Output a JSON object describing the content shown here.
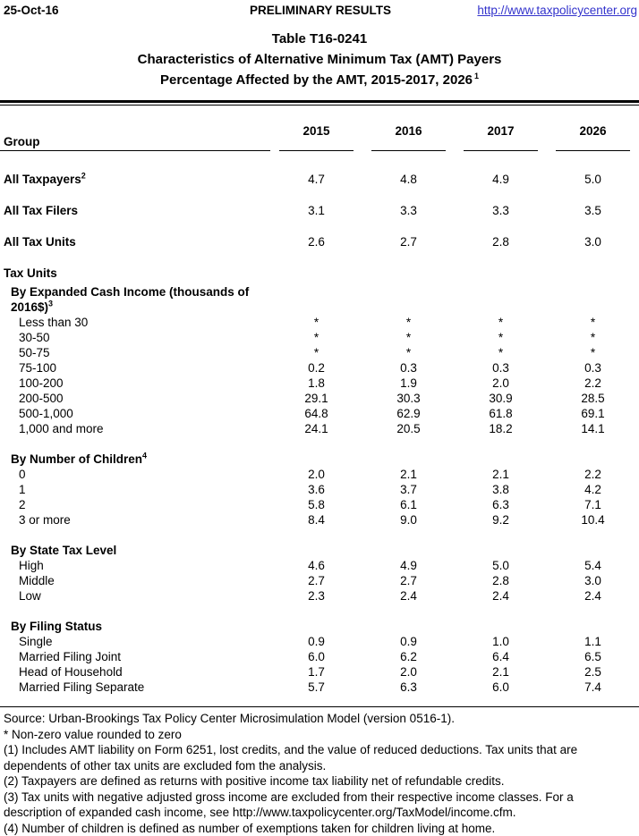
{
  "header": {
    "date": "25-Oct-16",
    "status": "PRELIMINARY RESULTS",
    "link": "http://www.taxpolicycenter.org",
    "link_color": "#3333CC"
  },
  "title": {
    "line1": "Table T16-0241",
    "line2": "Characteristics of Alternative Minimum Tax (AMT) Payers",
    "line3": "Percentage Affected by the AMT, 2015-2017, 2026",
    "line3_sup": "1"
  },
  "table": {
    "group_header": "Group",
    "year_headers": [
      "2015",
      "2016",
      "2017",
      "2026"
    ],
    "summary_rows": [
      {
        "label": "All Taxpayers",
        "sup": "2",
        "values": [
          "4.7",
          "4.8",
          "4.9",
          "5.0"
        ]
      },
      {
        "label": "All Tax Filers",
        "sup": "",
        "values": [
          "3.1",
          "3.3",
          "3.3",
          "3.5"
        ]
      },
      {
        "label": "All Tax Units",
        "sup": "",
        "values": [
          "2.6",
          "2.7",
          "2.8",
          "3.0"
        ]
      }
    ],
    "group_heading": "Tax Units",
    "sections": [
      {
        "heading": "By Expanded Cash Income (thousands of 2016$)",
        "sup": "3",
        "rows": [
          {
            "label": "Less than 30",
            "values": [
              "*",
              "*",
              "*",
              "*"
            ]
          },
          {
            "label": "30-50",
            "values": [
              "*",
              "*",
              "*",
              "*"
            ]
          },
          {
            "label": "50-75",
            "values": [
              "*",
              "*",
              "*",
              "*"
            ]
          },
          {
            "label": "75-100",
            "values": [
              "0.2",
              "0.3",
              "0.3",
              "0.3"
            ]
          },
          {
            "label": "100-200",
            "values": [
              "1.8",
              "1.9",
              "2.0",
              "2.2"
            ]
          },
          {
            "label": "200-500",
            "values": [
              "29.1",
              "30.3",
              "30.9",
              "28.5"
            ]
          },
          {
            "label": "500-1,000",
            "values": [
              "64.8",
              "62.9",
              "61.8",
              "69.1"
            ]
          },
          {
            "label": "1,000 and more",
            "values": [
              "24.1",
              "20.5",
              "18.2",
              "14.1"
            ]
          }
        ]
      },
      {
        "heading": "By Number of Children",
        "sup": "4",
        "rows": [
          {
            "label": "0",
            "values": [
              "2.0",
              "2.1",
              "2.1",
              "2.2"
            ]
          },
          {
            "label": "1",
            "values": [
              "3.6",
              "3.7",
              "3.8",
              "4.2"
            ]
          },
          {
            "label": "2",
            "values": [
              "5.8",
              "6.1",
              "6.3",
              "7.1"
            ]
          },
          {
            "label": "3 or more",
            "values": [
              "8.4",
              "9.0",
              "9.2",
              "10.4"
            ]
          }
        ]
      },
      {
        "heading": "By State Tax Level",
        "sup": "",
        "rows": [
          {
            "label": "High",
            "values": [
              "4.6",
              "4.9",
              "5.0",
              "5.4"
            ]
          },
          {
            "label": "Middle",
            "values": [
              "2.7",
              "2.7",
              "2.8",
              "3.0"
            ]
          },
          {
            "label": "Low",
            "values": [
              "2.3",
              "2.4",
              "2.4",
              "2.4"
            ]
          }
        ]
      },
      {
        "heading": "By Filing Status",
        "sup": "",
        "rows": [
          {
            "label": "Single",
            "values": [
              "0.9",
              "0.9",
              "1.0",
              "1.1"
            ]
          },
          {
            "label": "Married Filing Joint",
            "values": [
              "6.0",
              "6.2",
              "6.4",
              "6.5"
            ]
          },
          {
            "label": "Head of Household",
            "values": [
              "1.7",
              "2.0",
              "2.1",
              "2.5"
            ]
          },
          {
            "label": "Married Filing Separate",
            "values": [
              "5.7",
              "6.3",
              "6.0",
              "7.4"
            ]
          }
        ]
      }
    ]
  },
  "footer": {
    "source": "Source: Urban-Brookings Tax Policy Center Microsimulation Model (version 0516-1).",
    "asterisk_note": "* Non-zero value rounded to zero",
    "notes": [
      "(1) Includes AMT liability on Form 6251, lost credits, and the value of reduced deductions. Tax units that are dependents of other tax units are excluded fom the analysis.",
      "(2) Taxpayers are defined as returns with positive income tax liability net of refundable credits.",
      "(3) Tax units with negative adjusted gross income are excluded from their respective income classes. For a description of expanded cash income, see http://www.taxpolicycenter.org/TaxModel/income.cfm.",
      "(4) Number of children is defined as number of exemptions taken for children living at home."
    ]
  }
}
